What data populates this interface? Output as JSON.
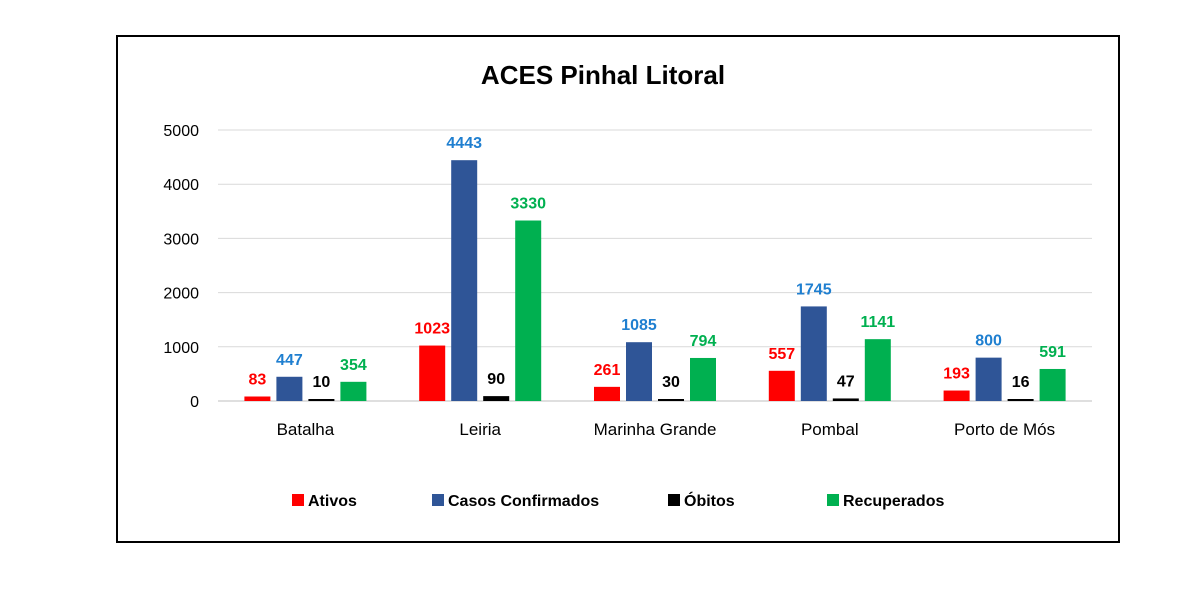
{
  "chart_data": {
    "type": "bar",
    "title": "ACES Pinhal Litoral",
    "categories": [
      "Batalha",
      "Leiria",
      "Marinha Grande",
      "Pombal",
      "Porto de Mós"
    ],
    "series": [
      {
        "name": "Ativos",
        "color": "#ff0000",
        "label_color": "#ff0000",
        "values": [
          83,
          1023,
          261,
          557,
          193
        ]
      },
      {
        "name": "Casos Confirmados",
        "color": "#2f5597",
        "label_color": "#1f7fd0",
        "values": [
          447,
          4443,
          1085,
          1745,
          800
        ]
      },
      {
        "name": "Óbitos",
        "color": "#000000",
        "label_color": "#000000",
        "values": [
          10,
          90,
          30,
          47,
          16
        ]
      },
      {
        "name": "Recuperados",
        "color": "#00b050",
        "label_color": "#00b050",
        "values": [
          354,
          3330,
          794,
          1141,
          591
        ]
      }
    ],
    "yticks": [
      0,
      1000,
      2000,
      3000,
      4000,
      5000
    ],
    "ylim": [
      0,
      5000
    ],
    "grid": true,
    "legend_position": "bottom"
  }
}
